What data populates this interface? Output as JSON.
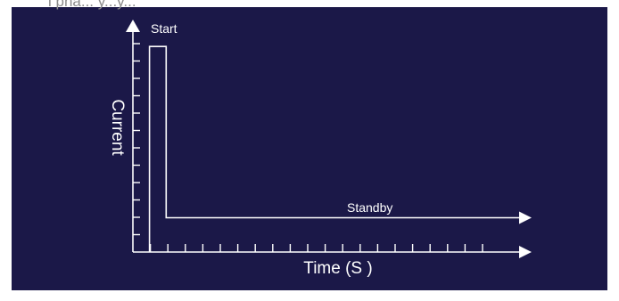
{
  "chart_data": {
    "type": "line",
    "title": "",
    "xlabel": "Time (S )",
    "ylabel": "Current",
    "grid": false,
    "legend": "none",
    "x_ticks_count": 21,
    "y_ticks_count": 13,
    "series": [
      {
        "name": "",
        "points": [
          {
            "x": 1,
            "y": 0
          },
          {
            "x": 1,
            "y": 12
          },
          {
            "x": 2,
            "y": 12
          },
          {
            "x": 2,
            "y": 2
          },
          {
            "x": 24,
            "y": 2
          }
        ]
      }
    ],
    "annotations": [
      {
        "text": "Start",
        "x": 1.5,
        "y": 12
      },
      {
        "text": "Standby",
        "x": 13,
        "y": 2
      }
    ],
    "xlim": [
      0,
      24
    ],
    "ylim": [
      0,
      13
    ]
  },
  "colors": {
    "background": "#1b1848",
    "foreground": "#ffffff",
    "page": "#ffffff"
  },
  "caption_fragment": "i pha... y...y..."
}
